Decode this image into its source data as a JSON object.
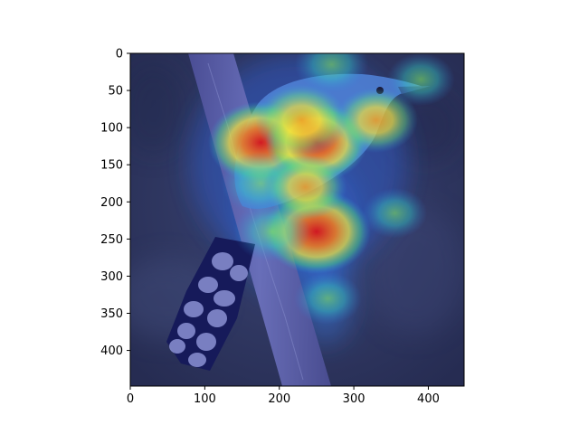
{
  "chart_data": {
    "type": "heatmap",
    "title": "",
    "xlabel": "",
    "ylabel": "",
    "xlim": [
      0,
      448
    ],
    "ylim": [
      448,
      0
    ],
    "x_ticks": [
      0,
      100,
      200,
      300,
      400
    ],
    "y_ticks": [
      0,
      50,
      100,
      150,
      200,
      250,
      300,
      350,
      400
    ],
    "x_tick_labels": [
      "0",
      "100",
      "200",
      "300",
      "400"
    ],
    "y_tick_labels": [
      "0",
      "50",
      "100",
      "150",
      "200",
      "250",
      "300",
      "350",
      "400"
    ],
    "image_subject": "bird perched on tree branch with attention heatmap overlay",
    "colormap": "jet",
    "hotspots": [
      {
        "x": 175,
        "y": 120,
        "intensity": 0.95
      },
      {
        "x": 250,
        "y": 120,
        "intensity": 0.9
      },
      {
        "x": 230,
        "y": 90,
        "intensity": 0.75
      },
      {
        "x": 330,
        "y": 90,
        "intensity": 0.6
      },
      {
        "x": 250,
        "y": 240,
        "intensity": 1.0
      },
      {
        "x": 190,
        "y": 240,
        "intensity": 0.5
      },
      {
        "x": 175,
        "y": 175,
        "intensity": 0.55
      },
      {
        "x": 235,
        "y": 180,
        "intensity": 0.6
      },
      {
        "x": 270,
        "y": 15,
        "intensity": 0.45
      },
      {
        "x": 390,
        "y": 35,
        "intensity": 0.35
      },
      {
        "x": 265,
        "y": 330,
        "intensity": 0.35
      },
      {
        "x": 355,
        "y": 215,
        "intensity": 0.3
      }
    ]
  },
  "colors": {
    "background_dark": "#2e3663",
    "branch": "#5a5fa8",
    "tail_dark": "#161a5a",
    "tail_spots": "#8b92d4"
  }
}
